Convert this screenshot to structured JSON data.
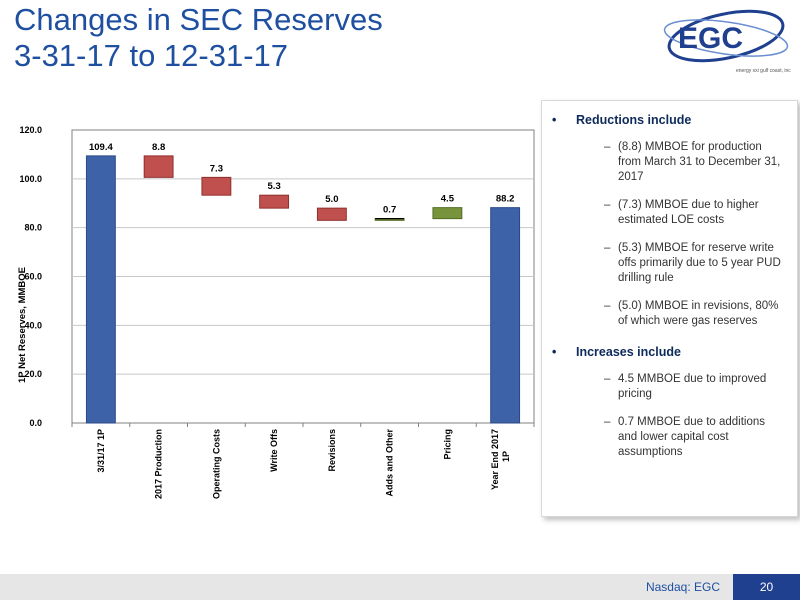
{
  "header": {
    "title_line1": "Changes in SEC Reserves",
    "title_line2": "3-31-17 to 12-31-17"
  },
  "logo": {
    "name": "EGC",
    "tagline": "energy xxi gulf coast, inc"
  },
  "chart_data": {
    "type": "bar",
    "title": "",
    "ylabel": "1P Net Reserves, MMBOE",
    "xlabel": "",
    "ylim": [
      0,
      120
    ],
    "yticks": [
      "0.0",
      "20.0",
      "40.0",
      "60.0",
      "80.0",
      "100.0",
      "120.0"
    ],
    "grid": true,
    "categories": [
      "3/31/17 1P",
      "2017 Production",
      "Operating Costs",
      "Write Offs",
      "Revisions",
      "Adds and Other",
      "Pricing",
      "Year End 2017 1P"
    ],
    "values": [
      109.4,
      -8.8,
      -7.3,
      -5.3,
      -5.0,
      0.7,
      4.5,
      88.2
    ],
    "labels": [
      "109.4",
      "8.8",
      "7.3",
      "5.3",
      "5.0",
      "0.7",
      "4.5",
      "88.2"
    ],
    "colors": {
      "total": "#3d62a8",
      "decrease": "#c0504d",
      "increase": "#77933c"
    }
  },
  "panel": {
    "reductions_title": "Reductions include",
    "reductions": [
      "(8.8) MMBOE for production from March 31 to December 31, 2017",
      "(7.3) MMBOE due to higher estimated LOE costs",
      "(5.3) MMBOE for reserve write offs primarily due to 5 year PUD drilling rule",
      "(5.0) MMBOE in revisions, 80% of which were gas reserves"
    ],
    "increases_title": "Increases include",
    "increases": [
      "4.5 MMBOE due to improved pricing",
      "0.7 MMBOE due to additions and lower capital cost assumptions"
    ]
  },
  "footer": {
    "label": "Nasdaq: EGC",
    "page": "20"
  }
}
